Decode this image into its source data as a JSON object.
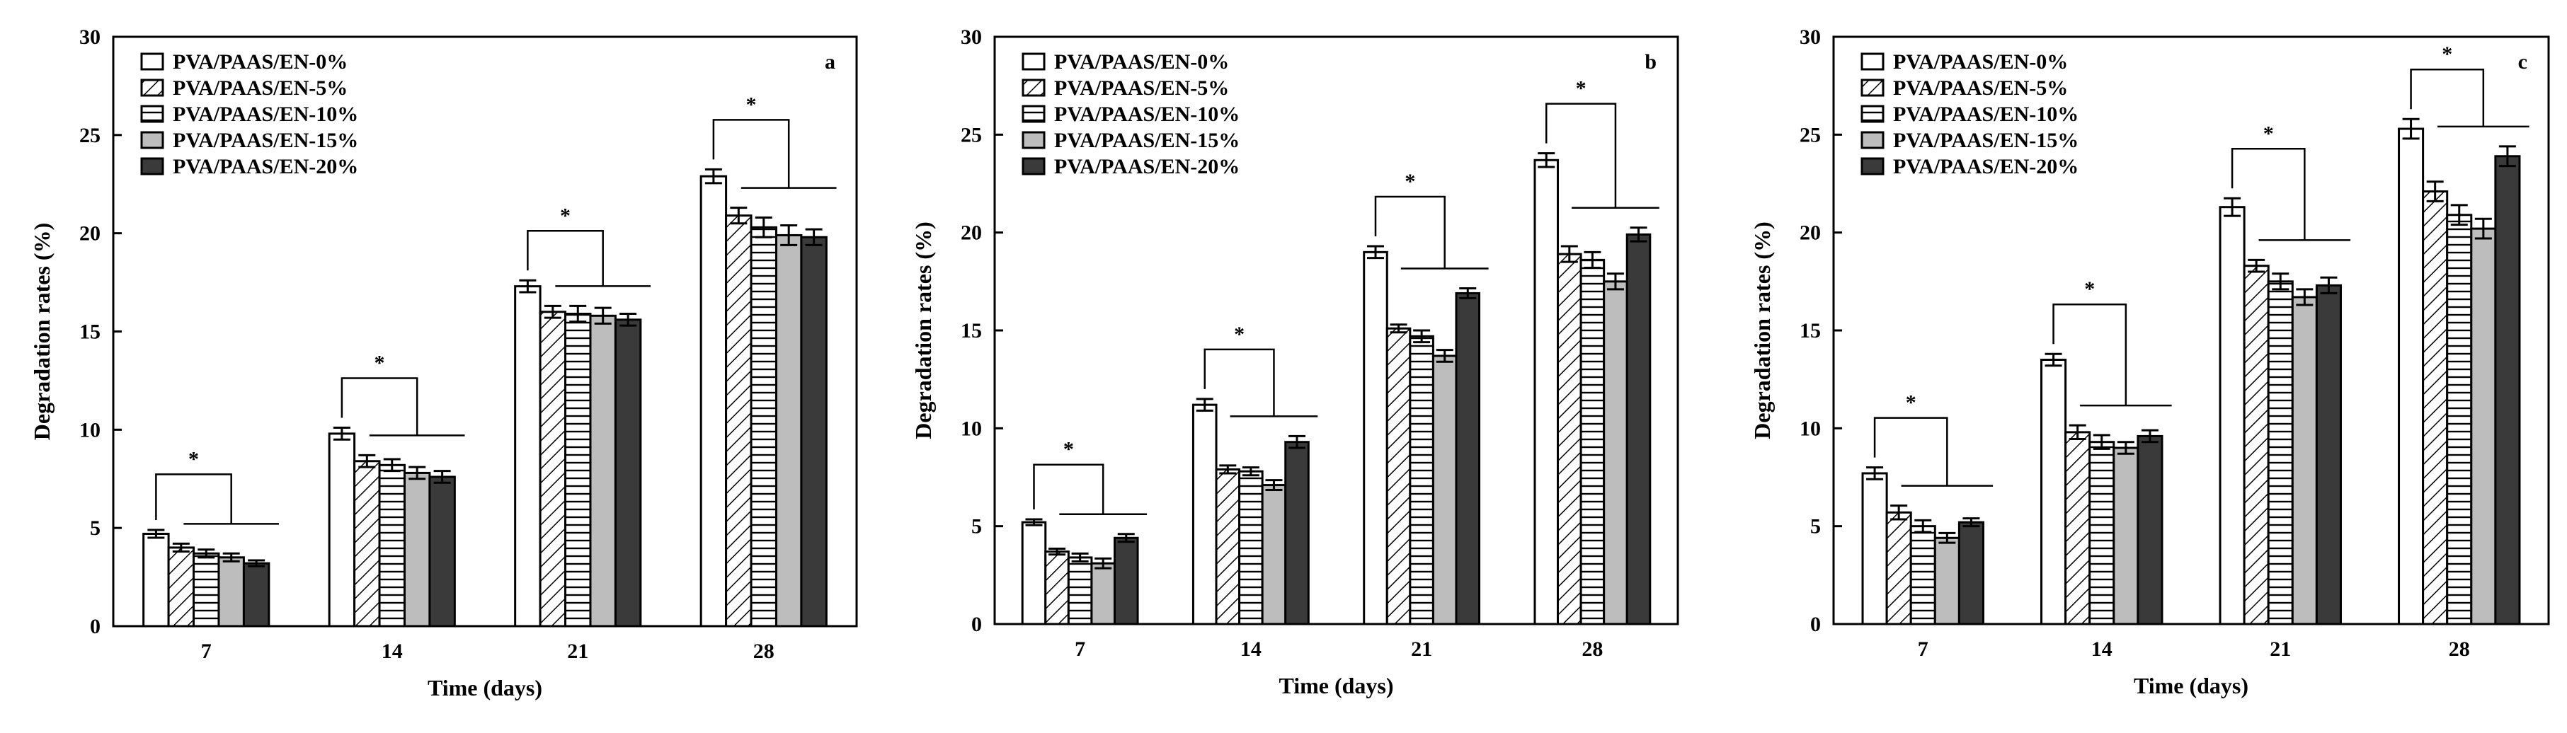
{
  "chart_data": [
    {
      "type": "bar",
      "panel_label": "a",
      "categories": [
        "7",
        "14",
        "21",
        "28"
      ],
      "series": [
        {
          "name": "PVA/PAAS/EN-0%",
          "pattern": "open",
          "values": [
            4.7,
            9.8,
            17.3,
            22.9
          ],
          "errors": [
            0.2,
            0.3,
            0.3,
            0.35
          ]
        },
        {
          "name": "PVA/PAAS/EN-5%",
          "pattern": "diagonal",
          "values": [
            4.0,
            8.4,
            16.0,
            20.9
          ],
          "errors": [
            0.2,
            0.3,
            0.3,
            0.4
          ]
        },
        {
          "name": "PVA/PAAS/EN-10%",
          "pattern": "horizontal",
          "values": [
            3.7,
            8.2,
            15.9,
            20.3
          ],
          "errors": [
            0.2,
            0.3,
            0.4,
            0.5
          ]
        },
        {
          "name": "PVA/PAAS/EN-15%",
          "pattern": "gray",
          "values": [
            3.5,
            7.8,
            15.8,
            19.9
          ],
          "errors": [
            0.2,
            0.3,
            0.4,
            0.5
          ]
        },
        {
          "name": "PVA/PAAS/EN-20%",
          "pattern": "dark",
          "values": [
            3.2,
            7.6,
            15.6,
            19.8
          ],
          "errors": [
            0.15,
            0.3,
            0.3,
            0.4
          ]
        }
      ],
      "significance_marker": "*",
      "xlabel": "Time (days)",
      "ylabel": "Degradation rates (%)",
      "ylim": [
        0,
        30
      ],
      "yticks": [
        0,
        5,
        10,
        15,
        20,
        25,
        30
      ],
      "legend_position": "top-left"
    },
    {
      "type": "bar",
      "panel_label": "b",
      "categories": [
        "7",
        "14",
        "21",
        "28"
      ],
      "series": [
        {
          "name": "PVA/PAAS/EN-0%",
          "pattern": "open",
          "values": [
            5.2,
            11.2,
            19.0,
            23.7
          ],
          "errors": [
            0.15,
            0.3,
            0.3,
            0.35
          ]
        },
        {
          "name": "PVA/PAAS/EN-5%",
          "pattern": "diagonal",
          "values": [
            3.7,
            7.9,
            15.1,
            18.9
          ],
          "errors": [
            0.15,
            0.2,
            0.2,
            0.4
          ]
        },
        {
          "name": "PVA/PAAS/EN-10%",
          "pattern": "horizontal",
          "values": [
            3.4,
            7.8,
            14.7,
            18.6
          ],
          "errors": [
            0.2,
            0.2,
            0.3,
            0.4
          ]
        },
        {
          "name": "PVA/PAAS/EN-15%",
          "pattern": "gray",
          "values": [
            3.1,
            7.1,
            13.7,
            17.5
          ],
          "errors": [
            0.25,
            0.25,
            0.3,
            0.4
          ]
        },
        {
          "name": "PVA/PAAS/EN-20%",
          "pattern": "dark",
          "values": [
            4.4,
            9.3,
            16.9,
            19.9
          ],
          "errors": [
            0.2,
            0.3,
            0.25,
            0.35
          ]
        }
      ],
      "significance_marker": "*",
      "xlabel": "Time (days)",
      "ylabel": "Degradation rates (%)",
      "ylim": [
        0,
        30
      ],
      "yticks": [
        0,
        5,
        10,
        15,
        20,
        25,
        30
      ],
      "legend_position": "top-left"
    },
    {
      "type": "bar",
      "panel_label": "c",
      "categories": [
        "7",
        "14",
        "21",
        "28"
      ],
      "series": [
        {
          "name": "PVA/PAAS/EN-0%",
          "pattern": "open",
          "values": [
            7.7,
            13.5,
            21.3,
            25.3
          ],
          "errors": [
            0.3,
            0.3,
            0.45,
            0.5
          ]
        },
        {
          "name": "PVA/PAAS/EN-5%",
          "pattern": "diagonal",
          "values": [
            5.7,
            9.8,
            18.3,
            22.1
          ],
          "errors": [
            0.35,
            0.35,
            0.3,
            0.5
          ]
        },
        {
          "name": "PVA/PAAS/EN-10%",
          "pattern": "horizontal",
          "values": [
            5.0,
            9.3,
            17.5,
            20.9
          ],
          "errors": [
            0.3,
            0.35,
            0.4,
            0.5
          ]
        },
        {
          "name": "PVA/PAAS/EN-15%",
          "pattern": "gray",
          "values": [
            4.4,
            9.0,
            16.7,
            20.2
          ],
          "errors": [
            0.25,
            0.3,
            0.4,
            0.5
          ]
        },
        {
          "name": "PVA/PAAS/EN-20%",
          "pattern": "dark",
          "values": [
            5.2,
            9.6,
            17.3,
            23.9
          ],
          "errors": [
            0.2,
            0.3,
            0.4,
            0.5
          ]
        }
      ],
      "significance_marker": "*",
      "xlabel": "Time (days)",
      "ylabel": "Degradation rates (%)",
      "ylim": [
        0,
        30
      ],
      "yticks": [
        0,
        5,
        10,
        15,
        20,
        25,
        30
      ],
      "legend_position": "top-left"
    }
  ],
  "colors": {
    "frame": "#000000",
    "open_fill": "#ffffff",
    "gray_fill": "#bdbdbd",
    "dark_fill": "#3a3a3a"
  }
}
